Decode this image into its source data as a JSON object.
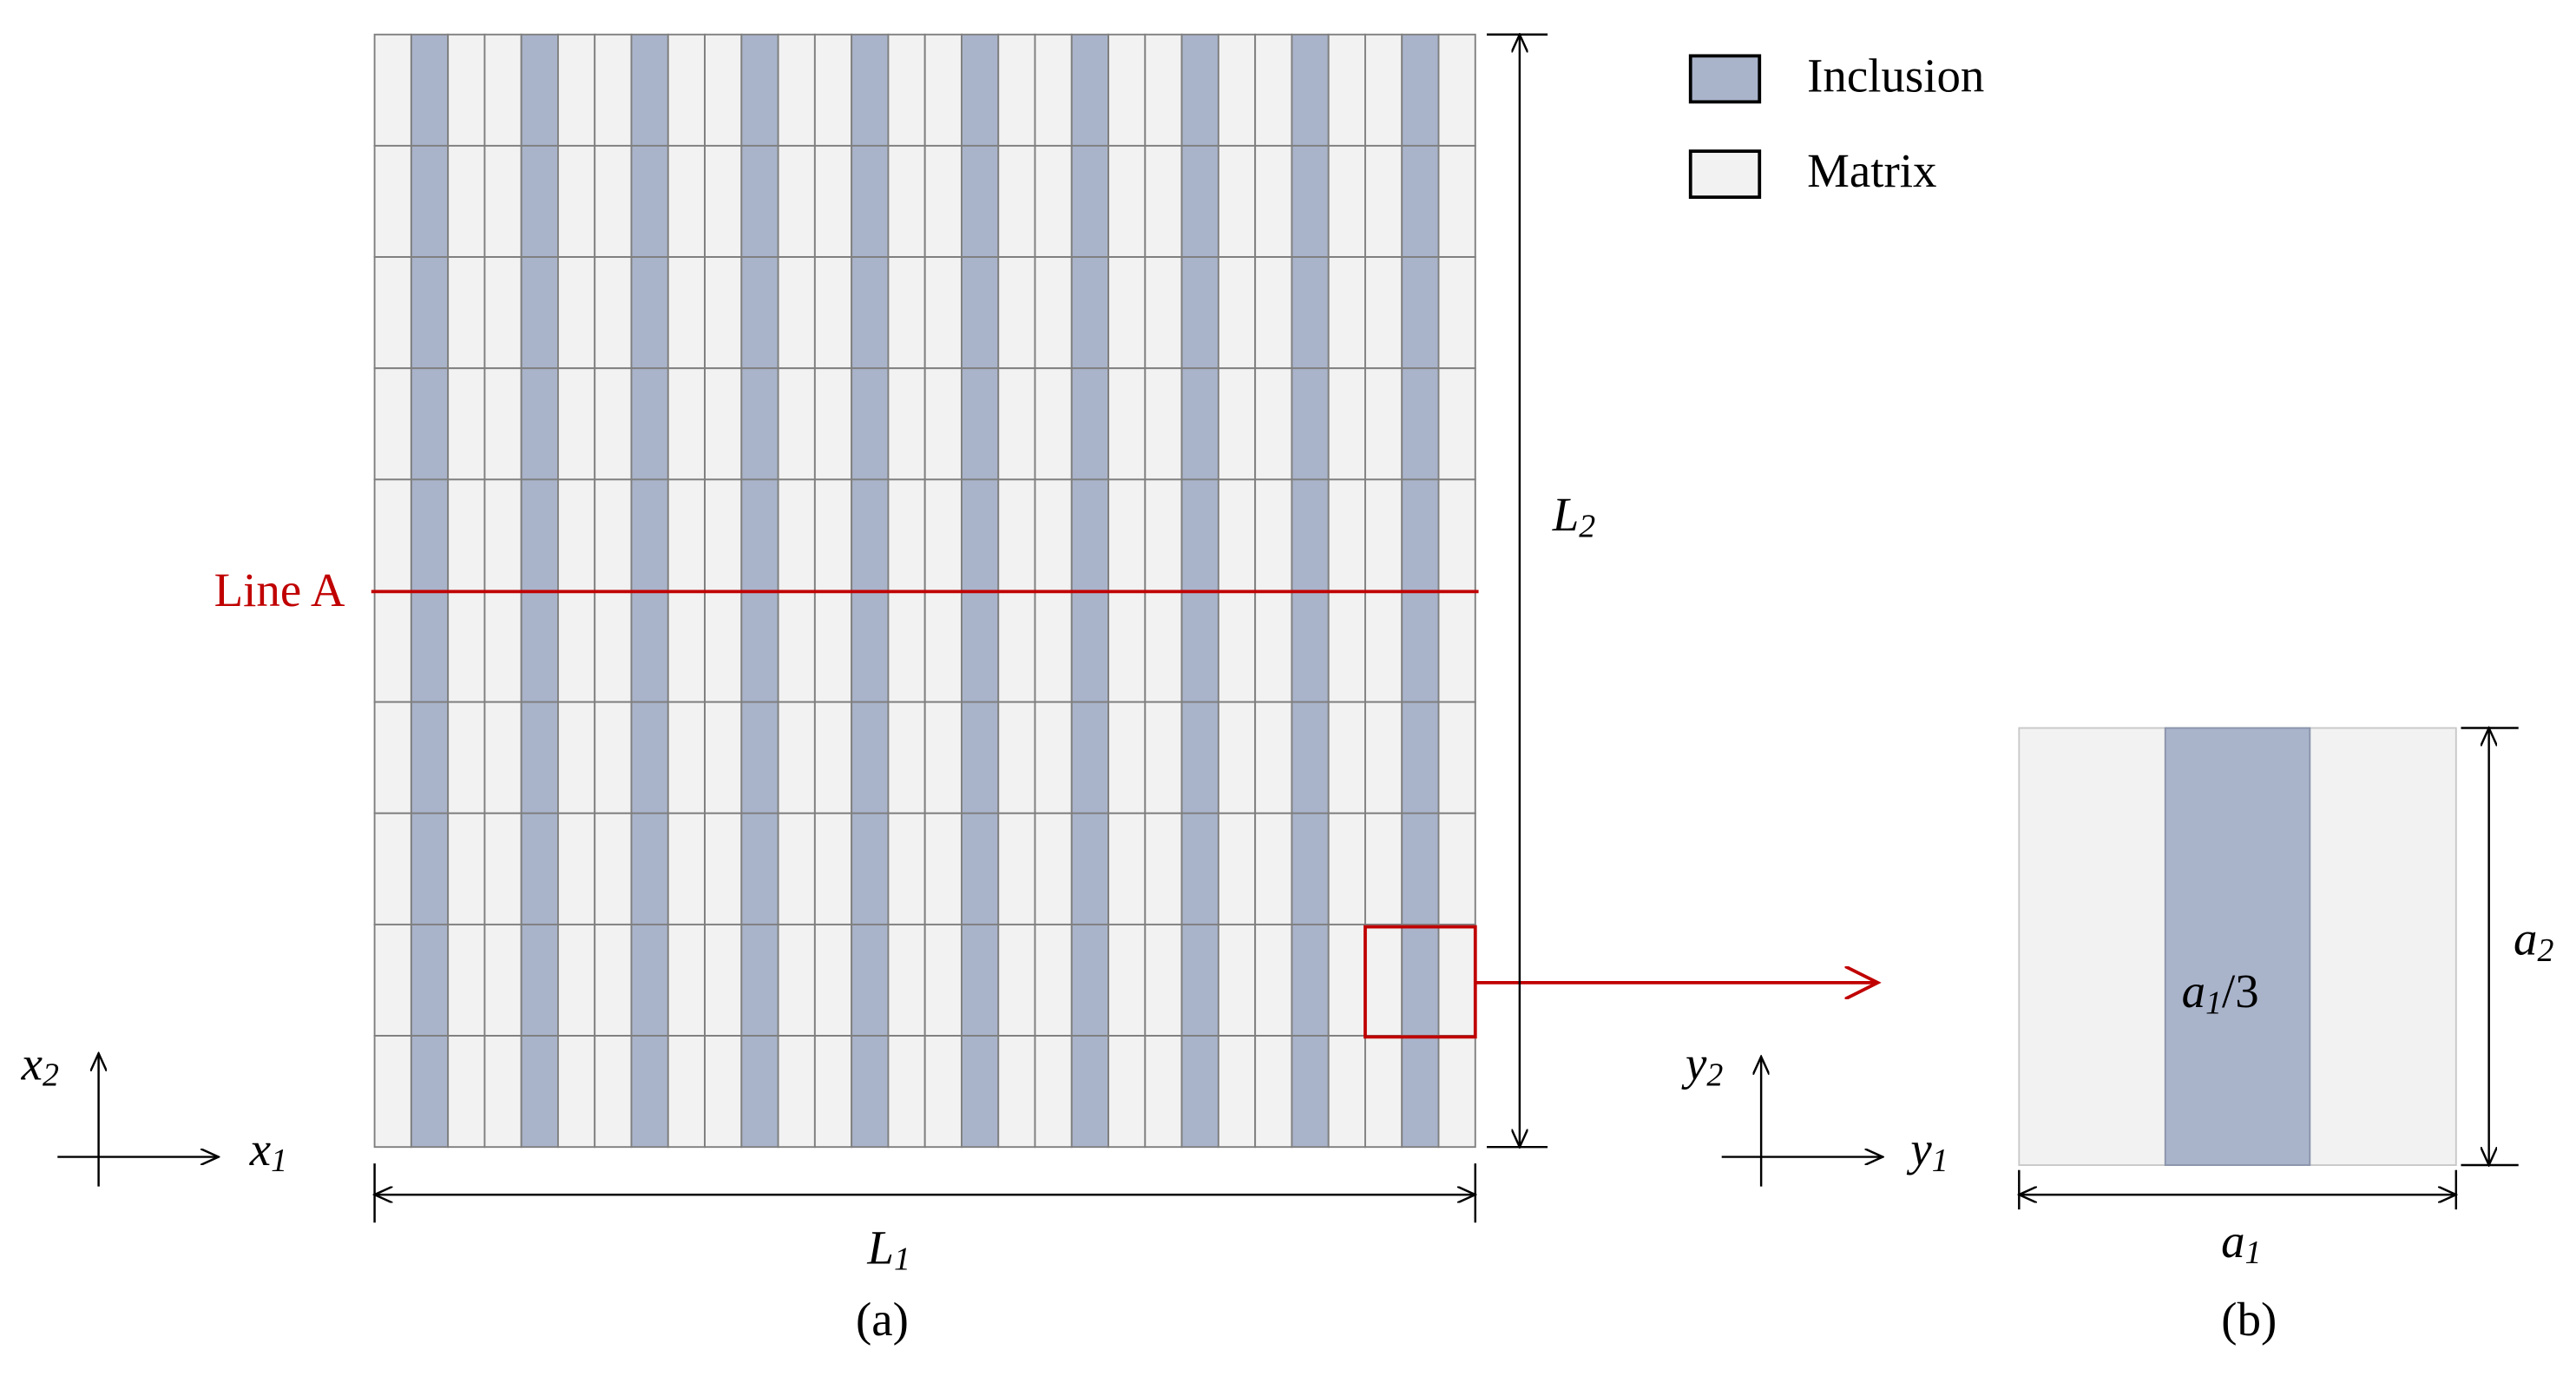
{
  "legend": {
    "items": [
      "Inclusion",
      "Matrix"
    ]
  },
  "line_label": "Line A",
  "panel_a": {
    "x1": {
      "base": "x",
      "sub": "1"
    },
    "x2": {
      "base": "x",
      "sub": "2"
    },
    "L1": {
      "base": "L",
      "sub": "1"
    },
    "L2": {
      "base": "L",
      "sub": "2"
    },
    "caption": "(a)"
  },
  "panel_b": {
    "y1": {
      "base": "y",
      "sub": "1"
    },
    "y2": {
      "base": "y",
      "sub": "2"
    },
    "a1": {
      "base": "a",
      "sub": "1"
    },
    "a2": {
      "base": "a",
      "sub": "2"
    },
    "a1_3": {
      "base": "a",
      "sub": "1",
      "tail": "/3"
    },
    "caption": "(b)"
  }
}
